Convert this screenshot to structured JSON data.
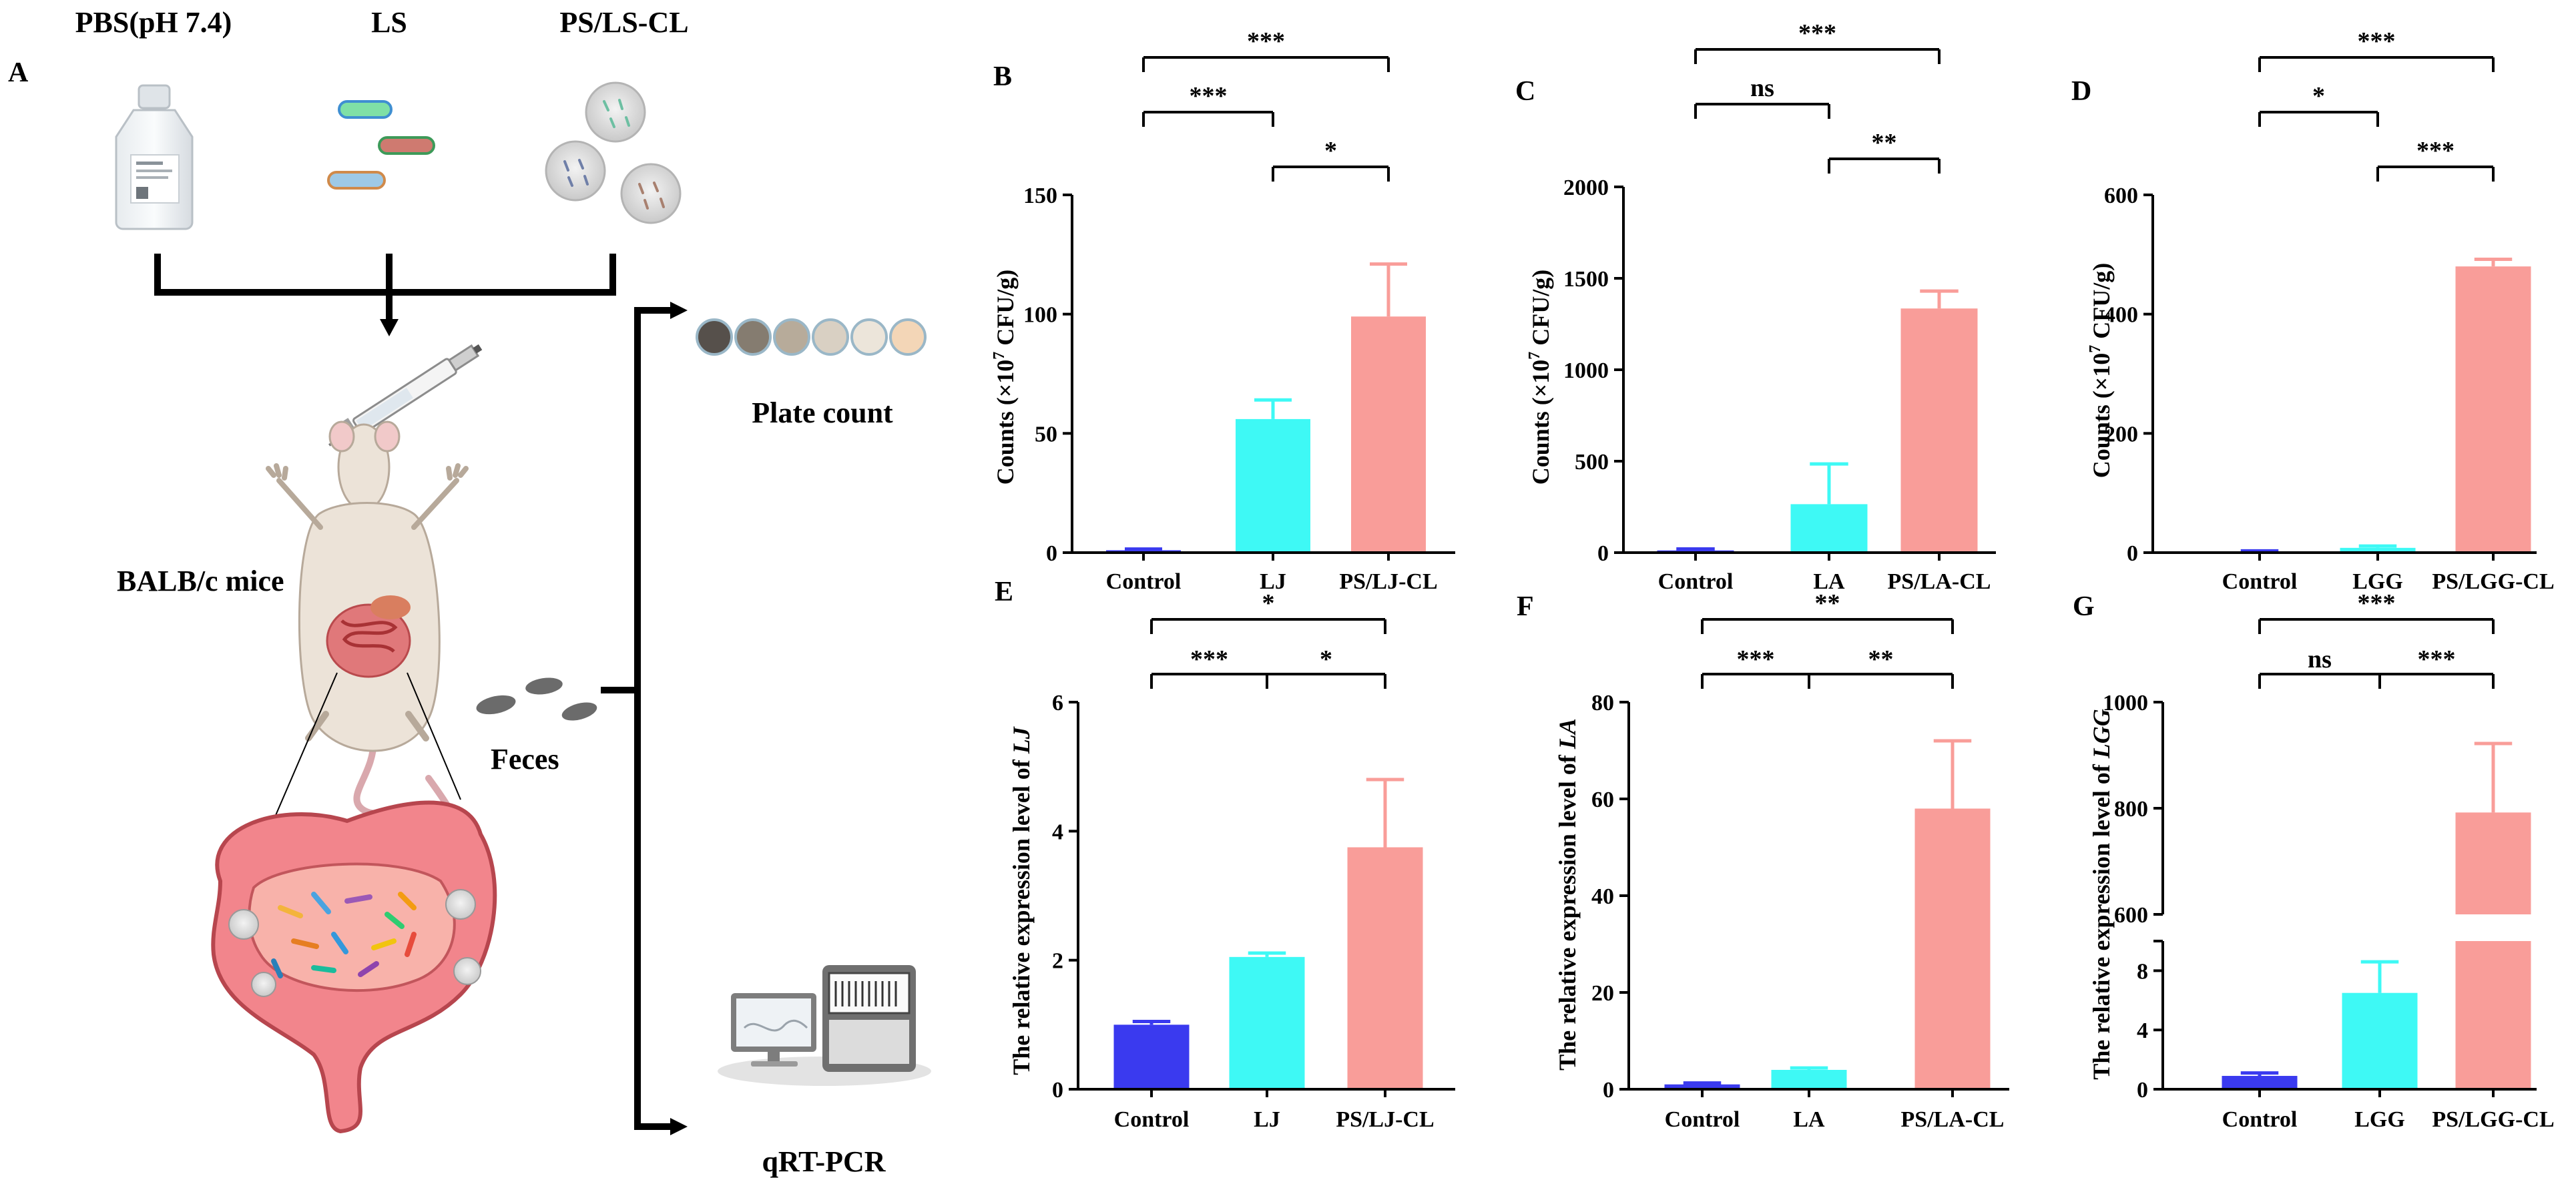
{
  "colors": {
    "control": "#3a3aef",
    "lj": "#3ef9f5",
    "treat": "#f99d99",
    "axis": "#000000",
    "skin": "#ece3d8",
    "intestine": "#e0787a"
  },
  "schematic": {
    "panel_letter": "A",
    "groups": [
      "PBS(pH 7.4)",
      "LS",
      "PS/LS-CL"
    ],
    "mouse_label": "BALB/c mice",
    "feces_label": "Feces",
    "plate_label": "Plate count",
    "pcr_label": "qRT-PCR",
    "icons": [
      "bottle-icon",
      "bacteria-icon",
      "microsphere-icon",
      "syringe-icon",
      "mouse-icon",
      "intestine-icon",
      "feces-icon",
      "petri-dish-icon",
      "pcr-machine-icon"
    ]
  },
  "chart_data": [
    {
      "panel": "B",
      "type": "bar",
      "categories": [
        "Control",
        "LJ",
        "PS/LJ-CL"
      ],
      "values": [
        1,
        56,
        99
      ],
      "errors": [
        0.5,
        8,
        22
      ],
      "ylabel_main": "Counts  (×10",
      "ylabel_exp": "7",
      "ylabel_tail": " CFU/g)",
      "ylim": [
        0,
        150
      ],
      "yticks": [
        0,
        50,
        100,
        150
      ],
      "sig": [
        {
          "from": 0,
          "to": 2,
          "label": "***",
          "level": 2
        },
        {
          "from": 0,
          "to": 1,
          "label": "***",
          "level": 1
        },
        {
          "from": 1,
          "to": 2,
          "label": "*",
          "level": 0
        }
      ]
    },
    {
      "panel": "C",
      "type": "bar",
      "categories": [
        "Control",
        "LA",
        "PS/LA-CL"
      ],
      "values": [
        12,
        265,
        1335
      ],
      "errors": [
        8,
        220,
        95
      ],
      "ylabel_main": "Counts (×10",
      "ylabel_exp": "7",
      "ylabel_tail": " CFU/g)",
      "ylim": [
        0,
        2000
      ],
      "yticks": [
        0,
        500,
        1000,
        1500,
        2000
      ],
      "sig": [
        {
          "from": 0,
          "to": 2,
          "label": "***",
          "level": 2
        },
        {
          "from": 0,
          "to": 1,
          "label": "ns",
          "level": 1
        },
        {
          "from": 1,
          "to": 2,
          "label": "**",
          "level": 0
        }
      ]
    },
    {
      "panel": "D",
      "type": "bar",
      "categories": [
        "Control",
        "LGG",
        "PS/LGG-CL"
      ],
      "values": [
        2,
        8,
        480
      ],
      "errors": [
        1,
        3,
        12
      ],
      "ylabel_main": "Counts (×10",
      "ylabel_exp": "7",
      "ylabel_tail": " CFU/g)",
      "ylim": [
        0,
        600
      ],
      "yticks": [
        0,
        200,
        400,
        600
      ],
      "sig": [
        {
          "from": 0,
          "to": 2,
          "label": "***",
          "level": 2
        },
        {
          "from": 0,
          "to": 1,
          "label": "*",
          "level": 1
        },
        {
          "from": 1,
          "to": 2,
          "label": "***",
          "level": 0
        }
      ]
    },
    {
      "panel": "E",
      "type": "bar",
      "categories": [
        "Control",
        "LJ",
        "PS/LJ-CL"
      ],
      "values": [
        1.0,
        2.05,
        3.75
      ],
      "errors": [
        0.05,
        0.06,
        1.05
      ],
      "ylabel_main": "The relative expression level of ",
      "ylabel_italic": "LJ",
      "ylim": [
        0,
        6
      ],
      "yticks": [
        0,
        2,
        4,
        6
      ],
      "sig": [
        {
          "from": 0,
          "to": 2,
          "label": "*",
          "level": 1,
          "type": "top"
        },
        {
          "from": 0,
          "to": 2,
          "label": "",
          "labels": [
            "***",
            "*"
          ],
          "level": 0,
          "type": "tree"
        }
      ]
    },
    {
      "panel": "F",
      "type": "bar",
      "categories": [
        "Control",
        "LA",
        "PS/LA-CL"
      ],
      "values": [
        1,
        4,
        58
      ],
      "errors": [
        0.3,
        0.4,
        14
      ],
      "ylabel_main": "The relative expression level of ",
      "ylabel_italic": "LA",
      "ylim": [
        0,
        80
      ],
      "yticks": [
        0,
        20,
        40,
        60,
        80
      ],
      "sig": [
        {
          "from": 0,
          "to": 2,
          "label": "**",
          "level": 1,
          "type": "top"
        },
        {
          "from": 0,
          "to": 2,
          "label": "",
          "labels": [
            "***",
            "**"
          ],
          "level": 0,
          "type": "tree"
        }
      ]
    },
    {
      "panel": "G",
      "type": "bar",
      "broken_axis": true,
      "categories": [
        "Control",
        "LGG",
        "PS/LGG-CL"
      ],
      "values": [
        0.9,
        6.5,
        792
      ],
      "errors": [
        0.2,
        2.1,
        130
      ],
      "ylabel_main": "The relative expression level of ",
      "ylabel_italic": "LGG",
      "ylim_lower": [
        0,
        10
      ],
      "yticks_lower": [
        0,
        4,
        8
      ],
      "ylim_upper": [
        600,
        1000
      ],
      "yticks_upper": [
        600,
        800,
        1000
      ],
      "sig": [
        {
          "from": 0,
          "to": 2,
          "label": "***",
          "level": 1,
          "type": "top"
        },
        {
          "from": 0,
          "to": 2,
          "label": "",
          "labels": [
            "ns",
            "***"
          ],
          "level": 0,
          "type": "tree"
        }
      ]
    }
  ]
}
